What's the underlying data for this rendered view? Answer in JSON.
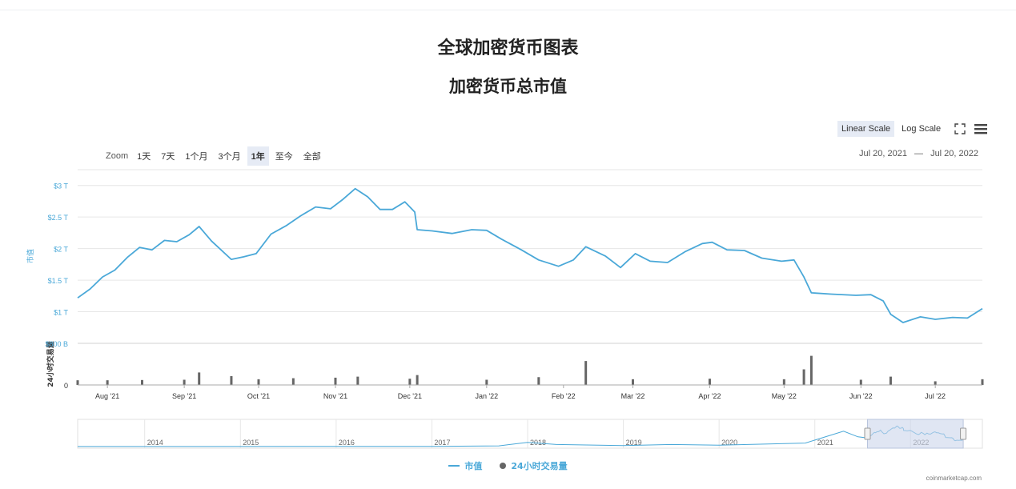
{
  "header": {
    "title": "全球加密货币图表",
    "subtitle": "加密货币总市值"
  },
  "scale": {
    "linear_label": "Linear Scale",
    "log_label": "Log Scale",
    "active": "linear"
  },
  "zoom": {
    "label": "Zoom",
    "buttons": [
      "1天",
      "7天",
      "1个月",
      "3个月",
      "1年",
      "至今",
      "全部"
    ],
    "active": "1年"
  },
  "date_range": {
    "from": "Jul 20, 2021",
    "sep": "—",
    "to": "Jul 20, 2022"
  },
  "legend": {
    "market_cap": "市值",
    "volume": "24小时交易量"
  },
  "attribution": "coinmarketcap.com",
  "colors": {
    "market_cap_line": "#4aa8d8",
    "volume_bars": "#666666",
    "navigator_mask": "#ccd6eb",
    "button_active_bg": "#e6ebf5"
  },
  "chart_data": {
    "type": "line",
    "xlabel": "",
    "ylabel": "市值",
    "y2label": "24小时交易量",
    "x_ticks": [
      "Aug '21",
      "Sep '21",
      "Oct '21",
      "Nov '21",
      "Dec '21",
      "Jan '22",
      "Feb '22",
      "Mar '22",
      "Apr '22",
      "May '22",
      "Jun '22",
      "Jul '22"
    ],
    "y_ticks": [
      "$1 T",
      "$1.5 T",
      "$2 T",
      "$2.5 T",
      "$3 T"
    ],
    "ylim": [
      0.5,
      3.25
    ],
    "y_unit": "T USD",
    "volume_ticks": [
      "0",
      "$800 B"
    ],
    "volume_ylim": [
      0,
      800
    ],
    "series": [
      {
        "name": "市值",
        "x": [
          "2021-07-20",
          "2021-07-25",
          "2021-07-30",
          "2021-08-04",
          "2021-08-09",
          "2021-08-14",
          "2021-08-19",
          "2021-08-24",
          "2021-08-29",
          "2021-09-03",
          "2021-09-07",
          "2021-09-12",
          "2021-09-20",
          "2021-09-25",
          "2021-09-30",
          "2021-10-06",
          "2021-10-12",
          "2021-10-18",
          "2021-10-24",
          "2021-10-30",
          "2021-11-04",
          "2021-11-09",
          "2021-11-14",
          "2021-11-19",
          "2021-11-24",
          "2021-11-29",
          "2021-12-03",
          "2021-12-04",
          "2021-12-10",
          "2021-12-18",
          "2021-12-26",
          "2022-01-01",
          "2022-01-07",
          "2022-01-15",
          "2022-01-22",
          "2022-01-30",
          "2022-02-05",
          "2022-02-10",
          "2022-02-18",
          "2022-02-24",
          "2022-03-02",
          "2022-03-08",
          "2022-03-15",
          "2022-03-22",
          "2022-03-29",
          "2022-04-02",
          "2022-04-08",
          "2022-04-15",
          "2022-04-22",
          "2022-04-30",
          "2022-05-05",
          "2022-05-09",
          "2022-05-12",
          "2022-05-20",
          "2022-05-30",
          "2022-06-05",
          "2022-06-10",
          "2022-06-13",
          "2022-06-18",
          "2022-06-25",
          "2022-07-01",
          "2022-07-08",
          "2022-07-14",
          "2022-07-20"
        ],
        "values": [
          1.22,
          1.36,
          1.55,
          1.66,
          1.86,
          2.02,
          1.98,
          2.13,
          2.11,
          2.22,
          2.35,
          2.12,
          1.83,
          1.87,
          1.92,
          2.23,
          2.36,
          2.52,
          2.66,
          2.63,
          2.78,
          2.95,
          2.82,
          2.62,
          2.62,
          2.74,
          2.58,
          2.3,
          2.28,
          2.24,
          2.3,
          2.29,
          2.15,
          1.98,
          1.82,
          1.72,
          1.82,
          2.03,
          1.88,
          1.7,
          1.92,
          1.8,
          1.78,
          1.95,
          2.08,
          2.1,
          1.98,
          1.97,
          1.85,
          1.8,
          1.82,
          1.55,
          1.3,
          1.28,
          1.26,
          1.27,
          1.17,
          0.96,
          0.83,
          0.92,
          0.88,
          0.91,
          0.9,
          1.05
        ]
      },
      {
        "name": "24小时交易量",
        "x": [
          "2021-07-20",
          "2021-08-01",
          "2021-08-15",
          "2021-09-01",
          "2021-09-07",
          "2021-09-20",
          "2021-10-01",
          "2021-10-15",
          "2021-11-01",
          "2021-11-10",
          "2021-12-01",
          "2021-12-04",
          "2022-01-01",
          "2022-01-22",
          "2022-02-10",
          "2022-03-01",
          "2022-04-01",
          "2022-05-01",
          "2022-05-09",
          "2022-05-12",
          "2022-06-01",
          "2022-06-13",
          "2022-07-01",
          "2022-07-20"
        ],
        "values": [
          90,
          90,
          95,
          100,
          240,
          170,
          110,
          130,
          140,
          160,
          120,
          190,
          100,
          150,
          460,
          110,
          120,
          110,
          300,
          560,
          100,
          160,
          70,
          110
        ]
      }
    ],
    "navigator": {
      "x_ticks": [
        "2014",
        "2015",
        "2016",
        "2017",
        "2018",
        "2019",
        "2020",
        "2021",
        "2022"
      ],
      "selected": [
        "2021-07-20",
        "2022-07-20"
      ]
    },
    "grid": true,
    "legend_position": "bottom"
  }
}
